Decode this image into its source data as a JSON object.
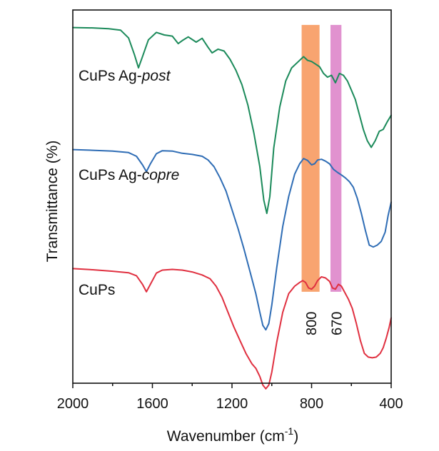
{
  "chart_data": {
    "type": "line",
    "title": "",
    "xlabel": "Wavenumber (cm",
    "xlabel_sup": "-1",
    "xlabel_close": ")",
    "ylabel": "Transmittance (%)",
    "xlim": [
      2000,
      400
    ],
    "xticks": [
      2000,
      1600,
      1200,
      800,
      400
    ],
    "x_reversed": true,
    "y_ticks_labeled": false,
    "y_units": "offset transmittance (arbitrary, 0 = bottom of plot, 100 = top)",
    "ylim": [
      0,
      100
    ],
    "grid": false,
    "legend": "none",
    "series": [
      {
        "name": "CuPs Ag-post",
        "label_prefix": "CuPs Ag-",
        "label_italic": "post",
        "color": "#1b8a5a",
        "points": [
          [
            2000,
            95.3
          ],
          [
            1900,
            95.2
          ],
          [
            1820,
            95.0
          ],
          [
            1760,
            94.6
          ],
          [
            1720,
            92.5
          ],
          [
            1690,
            88.0
          ],
          [
            1670,
            84.5
          ],
          [
            1650,
            87.5
          ],
          [
            1620,
            92.0
          ],
          [
            1580,
            94.0
          ],
          [
            1540,
            93.3
          ],
          [
            1500,
            93.0
          ],
          [
            1470,
            91.0
          ],
          [
            1450,
            91.8
          ],
          [
            1420,
            92.8
          ],
          [
            1380,
            91.4
          ],
          [
            1350,
            92.4
          ],
          [
            1320,
            90.0
          ],
          [
            1300,
            88.5
          ],
          [
            1270,
            89.5
          ],
          [
            1240,
            89.0
          ],
          [
            1210,
            86.8
          ],
          [
            1180,
            83.8
          ],
          [
            1150,
            80.0
          ],
          [
            1120,
            74.5
          ],
          [
            1090,
            67.0
          ],
          [
            1060,
            58.0
          ],
          [
            1040,
            49.0
          ],
          [
            1025,
            45.5
          ],
          [
            1010,
            50.0
          ],
          [
            990,
            63.0
          ],
          [
            960,
            74.0
          ],
          [
            930,
            81.0
          ],
          [
            900,
            84.5
          ],
          [
            870,
            86.0
          ],
          [
            840,
            87.5
          ],
          [
            820,
            86.5
          ],
          [
            800,
            86.2
          ],
          [
            780,
            85.5
          ],
          [
            760,
            84.8
          ],
          [
            740,
            83.0
          ],
          [
            720,
            82.0
          ],
          [
            700,
            82.5
          ],
          [
            680,
            80.5
          ],
          [
            660,
            83.0
          ],
          [
            640,
            82.5
          ],
          [
            620,
            81.0
          ],
          [
            600,
            78.5
          ],
          [
            580,
            76.0
          ],
          [
            560,
            72.0
          ],
          [
            540,
            68.0
          ],
          [
            520,
            65.0
          ],
          [
            500,
            63.2
          ],
          [
            480,
            65.0
          ],
          [
            460,
            67.5
          ],
          [
            440,
            68.0
          ],
          [
            420,
            70.0
          ],
          [
            400,
            71.8
          ]
        ]
      },
      {
        "name": "CuPs Ag-copre",
        "label_prefix": "CuPs Ag-",
        "label_italic": "copre",
        "color": "#2f6db5",
        "points": [
          [
            2000,
            62.6
          ],
          [
            1900,
            62.4
          ],
          [
            1800,
            62.2
          ],
          [
            1720,
            61.8
          ],
          [
            1680,
            60.8
          ],
          [
            1650,
            58.5
          ],
          [
            1630,
            56.7
          ],
          [
            1610,
            58.8
          ],
          [
            1580,
            61.5
          ],
          [
            1550,
            62.3
          ],
          [
            1500,
            62.2
          ],
          [
            1450,
            61.6
          ],
          [
            1400,
            61.3
          ],
          [
            1350,
            60.8
          ],
          [
            1320,
            59.8
          ],
          [
            1290,
            58.0
          ],
          [
            1260,
            55.0
          ],
          [
            1230,
            51.5
          ],
          [
            1200,
            46.5
          ],
          [
            1170,
            41.5
          ],
          [
            1140,
            36.0
          ],
          [
            1110,
            30.0
          ],
          [
            1080,
            24.0
          ],
          [
            1060,
            19.0
          ],
          [
            1045,
            15.5
          ],
          [
            1030,
            14.3
          ],
          [
            1015,
            16.0
          ],
          [
            1000,
            21.0
          ],
          [
            975,
            31.0
          ],
          [
            945,
            42.0
          ],
          [
            915,
            50.0
          ],
          [
            885,
            56.0
          ],
          [
            860,
            58.8
          ],
          [
            840,
            60.2
          ],
          [
            820,
            59.7
          ],
          [
            800,
            58.5
          ],
          [
            785,
            58.8
          ],
          [
            770,
            59.8
          ],
          [
            750,
            60.0
          ],
          [
            730,
            59.5
          ],
          [
            710,
            58.8
          ],
          [
            690,
            57.3
          ],
          [
            670,
            56.5
          ],
          [
            650,
            55.8
          ],
          [
            630,
            55.0
          ],
          [
            610,
            54.0
          ],
          [
            590,
            52.5
          ],
          [
            570,
            49.5
          ],
          [
            550,
            45.5
          ],
          [
            530,
            41.0
          ],
          [
            510,
            37.0
          ],
          [
            490,
            36.5
          ],
          [
            470,
            37.0
          ],
          [
            450,
            38.0
          ],
          [
            430,
            40.5
          ],
          [
            415,
            45.0
          ],
          [
            400,
            48.5
          ]
        ]
      },
      {
        "name": "CuPs",
        "label_prefix": "CuPs",
        "label_italic": "",
        "color": "#e03040",
        "points": [
          [
            2000,
            30.7
          ],
          [
            1900,
            30.4
          ],
          [
            1800,
            30.0
          ],
          [
            1720,
            29.6
          ],
          [
            1680,
            28.8
          ],
          [
            1650,
            26.5
          ],
          [
            1630,
            24.5
          ],
          [
            1610,
            26.5
          ],
          [
            1580,
            29.5
          ],
          [
            1550,
            30.3
          ],
          [
            1500,
            30.5
          ],
          [
            1450,
            30.3
          ],
          [
            1400,
            29.8
          ],
          [
            1350,
            29.0
          ],
          [
            1310,
            28.0
          ],
          [
            1280,
            26.0
          ],
          [
            1250,
            23.0
          ],
          [
            1220,
            19.0
          ],
          [
            1190,
            15.0
          ],
          [
            1160,
            11.5
          ],
          [
            1130,
            8.0
          ],
          [
            1100,
            5.2
          ],
          [
            1080,
            4.0
          ],
          [
            1060,
            1.8
          ],
          [
            1045,
            -0.5
          ],
          [
            1030,
            -1.5
          ],
          [
            1015,
            -0.5
          ],
          [
            1000,
            3.0
          ],
          [
            975,
            11.0
          ],
          [
            945,
            19.0
          ],
          [
            915,
            24.0
          ],
          [
            885,
            26.0
          ],
          [
            860,
            27.0
          ],
          [
            845,
            27.5
          ],
          [
            830,
            27.0
          ],
          [
            815,
            25.5
          ],
          [
            800,
            25.2
          ],
          [
            785,
            26.0
          ],
          [
            770,
            27.5
          ],
          [
            750,
            28.5
          ],
          [
            730,
            28.2
          ],
          [
            710,
            27.3
          ],
          [
            695,
            25.5
          ],
          [
            680,
            25.2
          ],
          [
            665,
            26.5
          ],
          [
            650,
            26.0
          ],
          [
            635,
            24.5
          ],
          [
            615,
            22.5
          ],
          [
            595,
            20.0
          ],
          [
            575,
            16.0
          ],
          [
            555,
            11.5
          ],
          [
            535,
            8.0
          ],
          [
            515,
            7.0
          ],
          [
            495,
            6.8
          ],
          [
            475,
            7.0
          ],
          [
            455,
            8.0
          ],
          [
            440,
            9.5
          ],
          [
            425,
            12.0
          ],
          [
            410,
            15.0
          ],
          [
            400,
            17.5
          ]
        ]
      }
    ],
    "highlight_bands": [
      {
        "label": "800",
        "x_range": [
          850,
          760
        ],
        "color": "#f79050",
        "opacity": 0.82
      },
      {
        "label": "670",
        "x_range": [
          705,
          650
        ],
        "color": "#d873c2",
        "opacity": 0.78
      }
    ]
  }
}
